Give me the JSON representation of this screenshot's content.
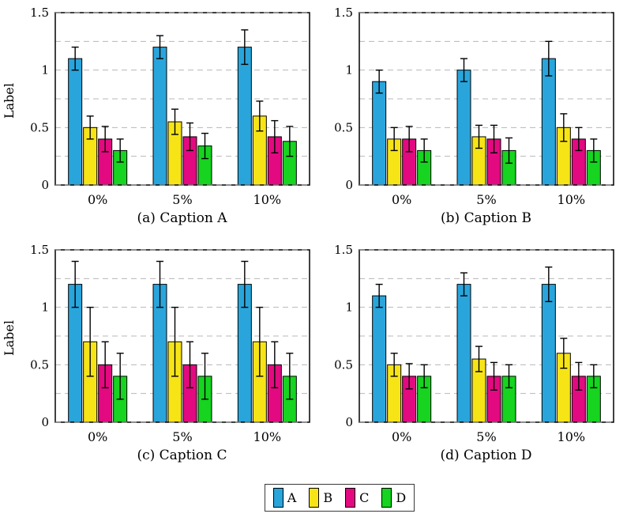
{
  "figure": {
    "background": "#ffffff",
    "grid_color": "#b8b8b8",
    "frame_color": "#000000"
  },
  "axis": {
    "ylabel": "Label",
    "yticks": [
      0,
      0.5,
      1,
      1.5
    ],
    "ytick_labels": [
      "0",
      "0.5",
      "1",
      "1.5"
    ],
    "ylim": [
      0,
      1.5
    ],
    "grid_step": 0.25,
    "categories": [
      "0%",
      "5%",
      "10%"
    ]
  },
  "series_colors": {
    "A": "#29A5DC",
    "B": "#F7E417",
    "C": "#E30980",
    "D": "#16D41F"
  },
  "legend": {
    "items": [
      {
        "label": "A",
        "color": "#29A5DC"
      },
      {
        "label": "B",
        "color": "#F7E417"
      },
      {
        "label": "C",
        "color": "#E30980"
      },
      {
        "label": "D",
        "color": "#16D41F"
      }
    ]
  },
  "chart_data": [
    {
      "id": "a",
      "type": "bar",
      "caption": "(a) Caption A",
      "show_ylabel": true,
      "categories": [
        "0%",
        "5%",
        "10%"
      ],
      "ylim": [
        0,
        1.5
      ],
      "grid": true,
      "legend_position": "bottom-shared",
      "series": [
        {
          "name": "A",
          "values": [
            1.1,
            1.2,
            1.2
          ],
          "errors": [
            0.1,
            0.1,
            0.15
          ]
        },
        {
          "name": "B",
          "values": [
            0.5,
            0.55,
            0.6
          ],
          "errors": [
            0.1,
            0.11,
            0.13
          ]
        },
        {
          "name": "C",
          "values": [
            0.4,
            0.42,
            0.42
          ],
          "errors": [
            0.11,
            0.12,
            0.14
          ]
        },
        {
          "name": "D",
          "values": [
            0.3,
            0.34,
            0.38
          ],
          "errors": [
            0.1,
            0.11,
            0.13
          ]
        }
      ]
    },
    {
      "id": "b",
      "type": "bar",
      "caption": "(b) Caption B",
      "show_ylabel": false,
      "categories": [
        "0%",
        "5%",
        "10%"
      ],
      "ylim": [
        0,
        1.5
      ],
      "grid": true,
      "legend_position": "bottom-shared",
      "series": [
        {
          "name": "A",
          "values": [
            0.9,
            1.0,
            1.1
          ],
          "errors": [
            0.1,
            0.1,
            0.15
          ]
        },
        {
          "name": "B",
          "values": [
            0.4,
            0.42,
            0.5
          ],
          "errors": [
            0.1,
            0.1,
            0.12
          ]
        },
        {
          "name": "C",
          "values": [
            0.4,
            0.4,
            0.4
          ],
          "errors": [
            0.11,
            0.12,
            0.1
          ]
        },
        {
          "name": "D",
          "values": [
            0.3,
            0.3,
            0.3
          ],
          "errors": [
            0.1,
            0.11,
            0.1
          ]
        }
      ]
    },
    {
      "id": "c",
      "type": "bar",
      "caption": "(c) Caption C",
      "show_ylabel": true,
      "categories": [
        "0%",
        "5%",
        "10%"
      ],
      "ylim": [
        0,
        1.5
      ],
      "grid": true,
      "legend_position": "bottom-shared",
      "series": [
        {
          "name": "A",
          "values": [
            1.2,
            1.2,
            1.2
          ],
          "errors": [
            0.2,
            0.2,
            0.2
          ]
        },
        {
          "name": "B",
          "values": [
            0.7,
            0.7,
            0.7
          ],
          "errors": [
            0.3,
            0.3,
            0.3
          ]
        },
        {
          "name": "C",
          "values": [
            0.5,
            0.5,
            0.5
          ],
          "errors": [
            0.2,
            0.2,
            0.2
          ]
        },
        {
          "name": "D",
          "values": [
            0.4,
            0.4,
            0.4
          ],
          "errors": [
            0.2,
            0.2,
            0.2
          ]
        }
      ]
    },
    {
      "id": "d",
      "type": "bar",
      "caption": "(d) Caption D",
      "show_ylabel": false,
      "categories": [
        "0%",
        "5%",
        "10%"
      ],
      "ylim": [
        0,
        1.5
      ],
      "grid": true,
      "legend_position": "bottom-shared",
      "series": [
        {
          "name": "A",
          "values": [
            1.1,
            1.2,
            1.2
          ],
          "errors": [
            0.1,
            0.1,
            0.15
          ]
        },
        {
          "name": "B",
          "values": [
            0.5,
            0.55,
            0.6
          ],
          "errors": [
            0.1,
            0.11,
            0.13
          ]
        },
        {
          "name": "C",
          "values": [
            0.4,
            0.4,
            0.4
          ],
          "errors": [
            0.11,
            0.12,
            0.12
          ]
        },
        {
          "name": "D",
          "values": [
            0.4,
            0.4,
            0.4
          ],
          "errors": [
            0.1,
            0.1,
            0.1
          ]
        }
      ]
    }
  ]
}
